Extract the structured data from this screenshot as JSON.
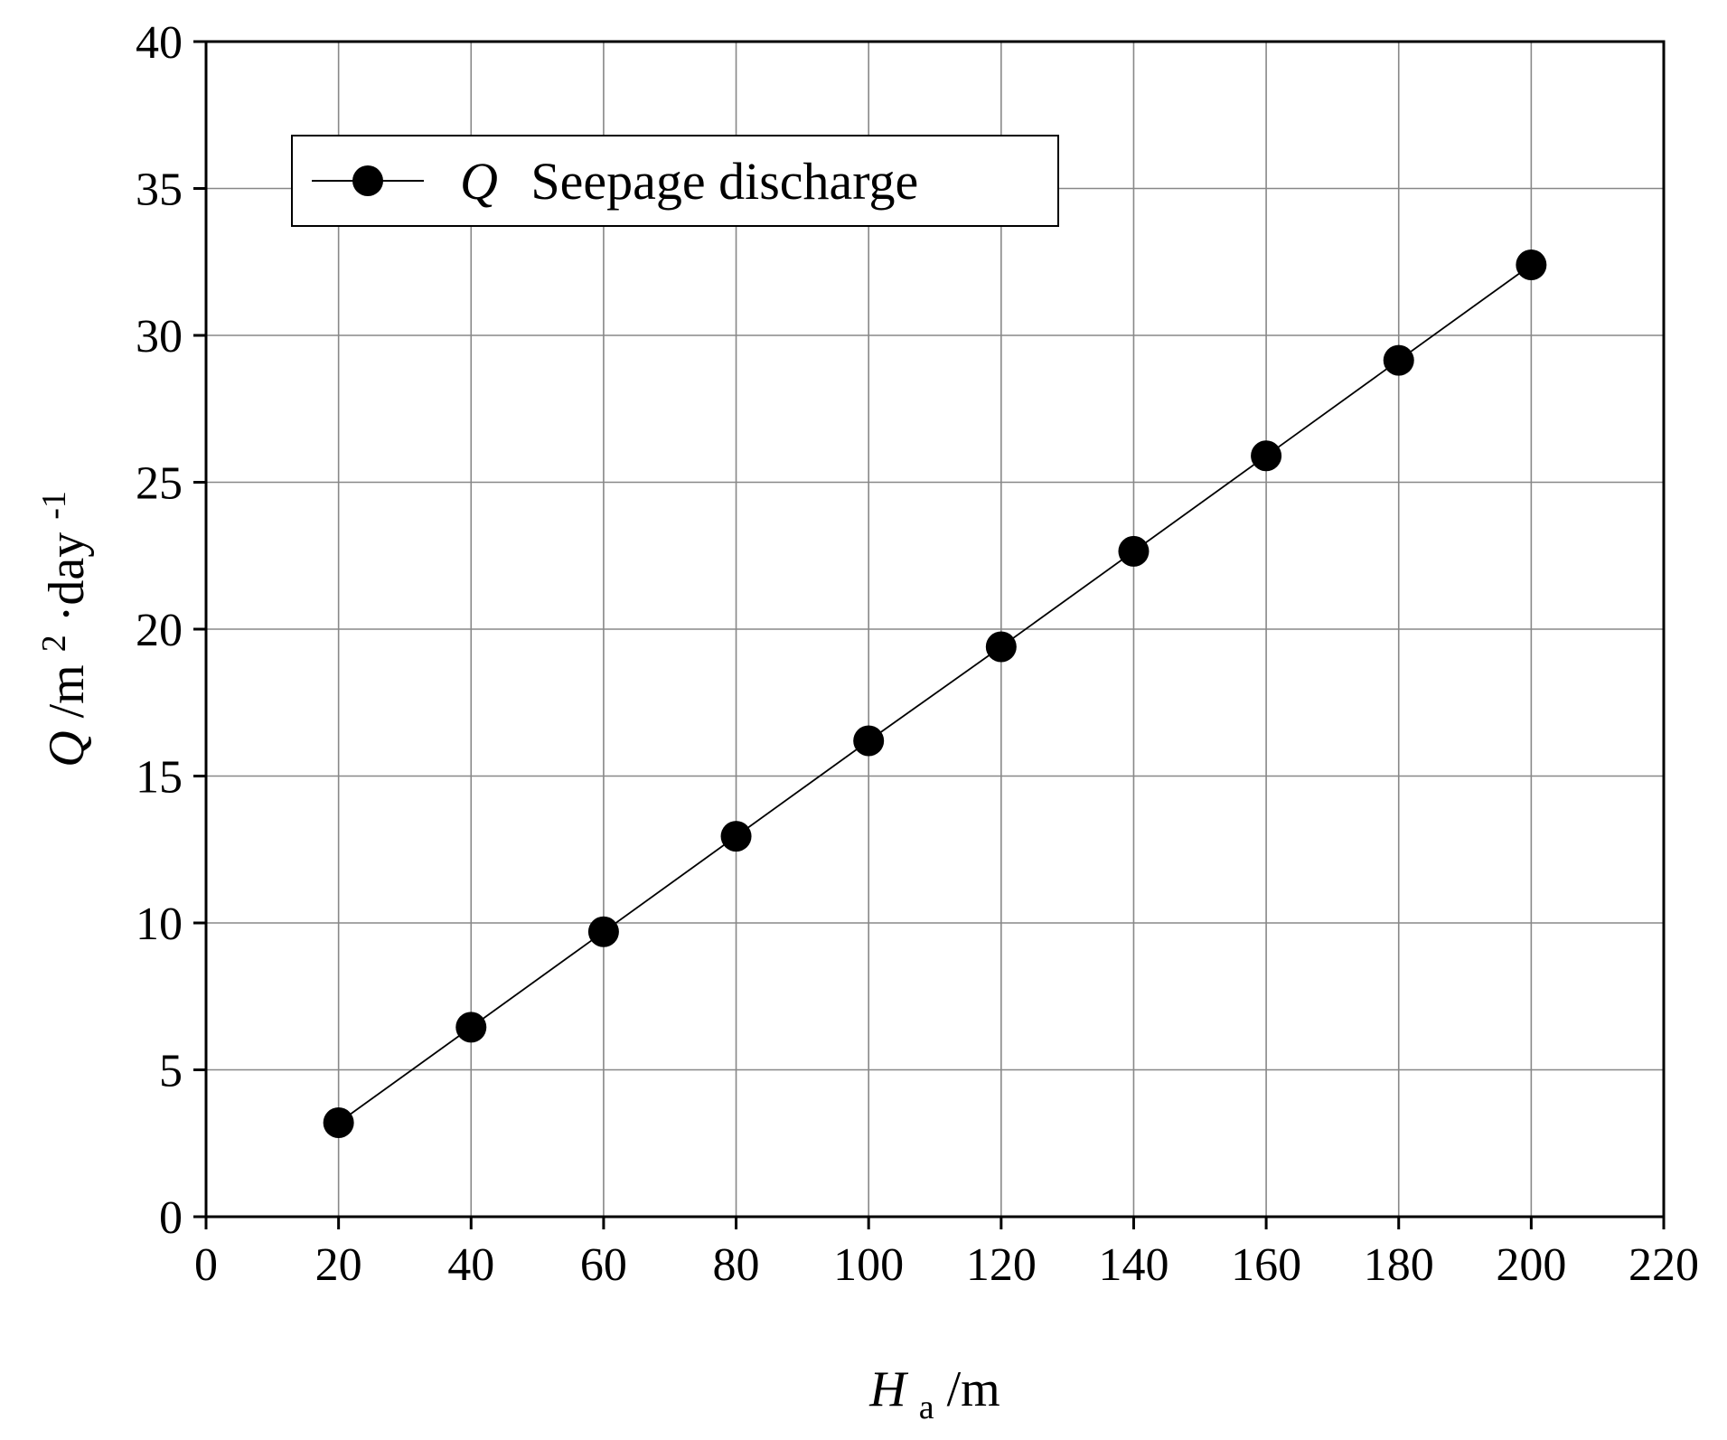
{
  "chart_data": {
    "type": "line",
    "x": [
      20,
      40,
      60,
      80,
      100,
      120,
      140,
      160,
      180,
      200
    ],
    "series": [
      {
        "name": "Seepage discharge",
        "symbol": "Q",
        "values": [
          3.2,
          6.45,
          9.7,
          12.95,
          16.2,
          19.4,
          22.65,
          25.9,
          29.15,
          32.4
        ]
      }
    ],
    "x_ticks": [
      "0",
      "20",
      "40",
      "60",
      "80",
      "100",
      "120",
      "140",
      "160",
      "180",
      "200",
      "220"
    ],
    "y_ticks": [
      "0",
      "5",
      "10",
      "15",
      "20",
      "25",
      "30",
      "35",
      "40"
    ],
    "xlim": [
      0,
      220
    ],
    "ylim": [
      0,
      40
    ],
    "xlabel": {
      "symbol": "H",
      "subscript": "a",
      "unit": " /m"
    },
    "ylabel": {
      "symbol": "Q",
      "unit_main": " /m",
      "exp1": "2",
      "unit_mid": "·day",
      "exp2": "-1"
    },
    "grid": true,
    "legend_position": "top-left",
    "colors": {
      "series": "#000000",
      "grid": "#888888",
      "axis": "#000000"
    }
  }
}
